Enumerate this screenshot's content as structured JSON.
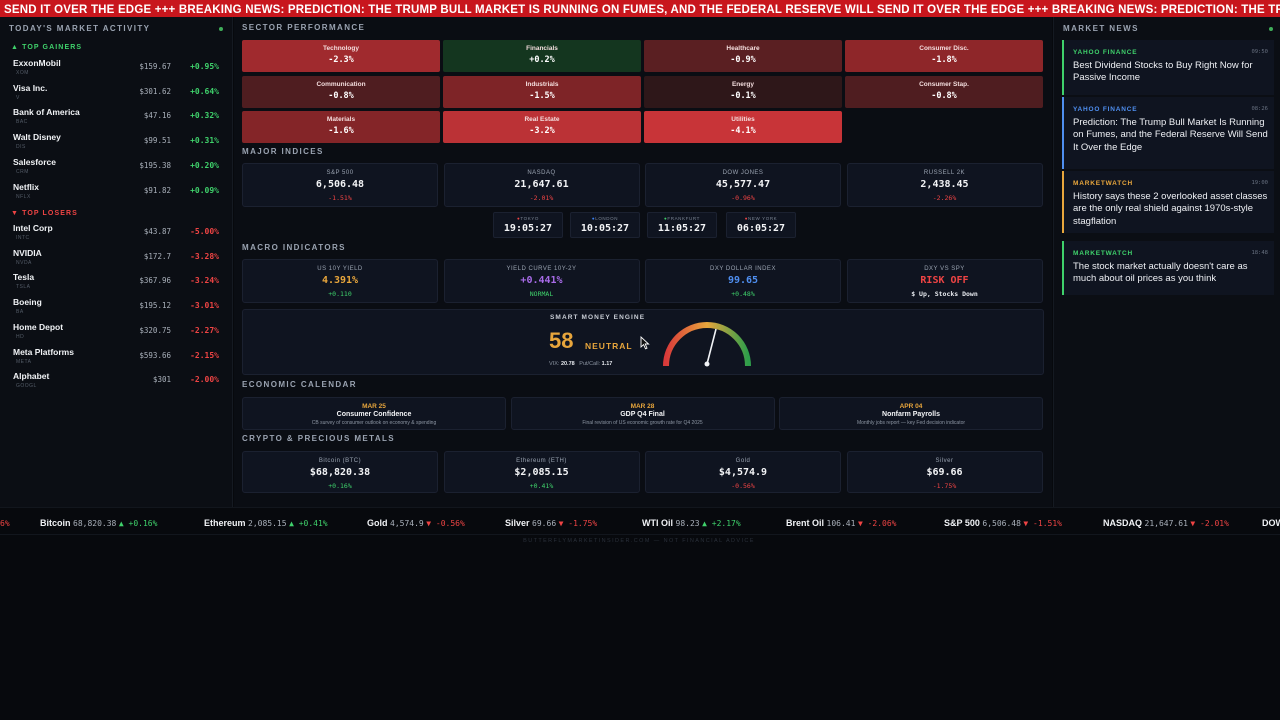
{
  "top_ticker": "SEND IT OVER THE EDGE +++ BREAKING NEWS: PREDICTION: THE TRUMP BULL MARKET IS RUNNING ON FUMES, AND THE FEDERAL RESERVE WILL SEND IT OVER THE EDGE +++ BREAKING NEWS: PREDICTION: THE TRUMP BULL MARKET IS RUNNING",
  "left": {
    "title": "TODAY'S MARKET ACTIVITY",
    "gainers_label": "▲ TOP GAINERS",
    "losers_label": "▼ TOP LOSERS",
    "gainers": [
      {
        "name": "ExxonMobil",
        "ticker": "XOM",
        "price": "$159.67",
        "change": "+0.95%"
      },
      {
        "name": "Visa Inc.",
        "ticker": "V",
        "price": "$301.62",
        "change": "+0.64%"
      },
      {
        "name": "Bank of America",
        "ticker": "BAC",
        "price": "$47.16",
        "change": "+0.32%"
      },
      {
        "name": "Walt Disney",
        "ticker": "DIS",
        "price": "$99.51",
        "change": "+0.31%"
      },
      {
        "name": "Salesforce",
        "ticker": "CRM",
        "price": "$195.38",
        "change": "+0.20%"
      },
      {
        "name": "Netflix",
        "ticker": "NFLX",
        "price": "$91.82",
        "change": "+0.09%"
      }
    ],
    "losers": [
      {
        "name": "Intel Corp",
        "ticker": "INTC",
        "price": "$43.87",
        "change": "-5.00%"
      },
      {
        "name": "NVIDIA",
        "ticker": "NVDA",
        "price": "$172.7",
        "change": "-3.28%"
      },
      {
        "name": "Tesla",
        "ticker": "TSLA",
        "price": "$367.96",
        "change": "-3.24%"
      },
      {
        "name": "Boeing",
        "ticker": "BA",
        "price": "$195.12",
        "change": "-3.01%"
      },
      {
        "name": "Home Depot",
        "ticker": "HD",
        "price": "$320.75",
        "change": "-2.27%"
      },
      {
        "name": "Meta Platforms",
        "ticker": "META",
        "price": "$593.66",
        "change": "-2.15%"
      },
      {
        "name": "Alphabet",
        "ticker": "GOOGL",
        "price": "$301",
        "change": "-2.00%"
      }
    ]
  },
  "sectors": {
    "title": "SECTOR PERFORMANCE",
    "items": [
      {
        "name": "Technology",
        "value": "-2.3%",
        "color": "#a02a2e"
      },
      {
        "name": "Financials",
        "value": "+0.2%",
        "color": "#14361f"
      },
      {
        "name": "Healthcare",
        "value": "-0.9%",
        "color": "#5a1f22"
      },
      {
        "name": "Consumer Disc.",
        "value": "-1.8%",
        "color": "#8e2629"
      },
      {
        "name": "Communication",
        "value": "-0.8%",
        "color": "#4f1d20"
      },
      {
        "name": "Industrials",
        "value": "-1.5%",
        "color": "#7e2427"
      },
      {
        "name": "Energy",
        "value": "-0.1%",
        "color": "#2e1719"
      },
      {
        "name": "Consumer Stap.",
        "value": "-0.8%",
        "color": "#4f1d20"
      },
      {
        "name": "Materials",
        "value": "-1.6%",
        "color": "#842528"
      },
      {
        "name": "Real Estate",
        "value": "-3.2%",
        "color": "#bb3236"
      },
      {
        "name": "Utilities",
        "value": "-4.1%",
        "color": "#c83438"
      }
    ]
  },
  "indices": {
    "title": "MAJOR INDICES",
    "items": [
      {
        "name": "S&P 500",
        "value": "6,506.48",
        "change": "-1.51%"
      },
      {
        "name": "NASDAQ",
        "value": "21,647.61",
        "change": "-2.01%"
      },
      {
        "name": "DOW JONES",
        "value": "45,577.47",
        "change": "-0.96%"
      },
      {
        "name": "RUSSELL 2K",
        "value": "2,438.45",
        "change": "-2.26%"
      }
    ]
  },
  "clocks": [
    {
      "city": "●TOKYO",
      "time": "19:05:27",
      "dot": "#ef4444"
    },
    {
      "city": "●LONDON",
      "time": "10:05:27",
      "dot": "#3b82f6"
    },
    {
      "city": "●FRANKFURT",
      "time": "11:05:27",
      "dot": "#3fd16b"
    },
    {
      "city": "●NEW YORK",
      "time": "06:05:27",
      "dot": "#ef4444"
    }
  ],
  "macro": {
    "title": "MACRO INDICATORS",
    "items": [
      {
        "name": "US 10Y YIELD",
        "value": "4.391%",
        "sub": "+0.110",
        "vcolor": "#e8a63c",
        "scolor": "#3fd16b"
      },
      {
        "name": "YIELD CURVE 10Y-2Y",
        "value": "+0.441%",
        "sub": "NORMAL",
        "vcolor": "#a86be8",
        "scolor": "#3fd16b"
      },
      {
        "name": "DXY DOLLAR INDEX",
        "value": "99.65",
        "sub": "+0.48%",
        "vcolor": "#4f8ff0",
        "scolor": "#3fd16b"
      },
      {
        "name": "DXY VS SPY",
        "value": "RISK OFF",
        "sub": "$ Up, Stocks Down",
        "vcolor": "#ef4444",
        "scolor": "#e6e9ee"
      }
    ]
  },
  "smart_money": {
    "title": "SMART MONEY ENGINE",
    "score": "58",
    "label": "NEUTRAL",
    "vix_label": "VIX:",
    "vix": "20.78",
    "pc_label": "Put/Call:",
    "pc": "1.17",
    "gauge_level": 0.58
  },
  "calendar": {
    "title": "ECONOMIC CALENDAR",
    "items": [
      {
        "date": "MAR 25",
        "title": "Consumer Confidence",
        "sub": "CB survey of consumer outlook on economy & spending"
      },
      {
        "date": "MAR 28",
        "title": "GDP Q4 Final",
        "sub": "Final revision of US economic growth rate for Q4 2025"
      },
      {
        "date": "APR 04",
        "title": "Nonfarm Payrolls",
        "sub": "Monthly jobs report — key Fed decision indicator"
      }
    ]
  },
  "crypto": {
    "title": "CRYPTO & PRECIOUS METALS",
    "items": [
      {
        "name": "Bitcoin (BTC)",
        "value": "$68,820.38",
        "change": "+0.16%",
        "dir": "up"
      },
      {
        "name": "Ethereum (ETH)",
        "value": "$2,085.15",
        "change": "+0.41%",
        "dir": "up"
      },
      {
        "name": "Gold",
        "value": "$4,574.9",
        "change": "-0.56%",
        "dir": "dn"
      },
      {
        "name": "Silver",
        "value": "$69.66",
        "change": "-1.75%",
        "dir": "dn"
      }
    ]
  },
  "news": {
    "title": "MARKET NEWS",
    "items": [
      {
        "source": "YAHOO FINANCE",
        "time": "09:50",
        "title": "Best Dividend Stocks to Buy Right Now for Passive Income",
        "color": "#3fd16b"
      },
      {
        "source": "YAHOO FINANCE",
        "time": "08:26",
        "title": "Prediction: The Trump Bull Market Is Running on Fumes, and the Federal Reserve Will Send It Over the Edge",
        "color": "#4f8ff0"
      },
      {
        "source": "MARKETWATCH",
        "time": "19:00",
        "title": "History says these 2 overlooked asset classes are the only real shield against 1970s-style stagflation",
        "color": "#e8a63c"
      },
      {
        "source": "MARKETWATCH",
        "time": "18:48",
        "title": "The stock market actually doesn't care as much about oil prices as you think",
        "color": "#3fd16b"
      }
    ]
  },
  "bottom_ticker": [
    {
      "name": "",
      "price": "",
      "change": "6%",
      "dir": "dn"
    },
    {
      "name": "Bitcoin",
      "price": "68,820.38",
      "change": "▲ +0.16%",
      "dir": "up"
    },
    {
      "name": "Ethereum",
      "price": "2,085.15",
      "change": "▲ +0.41%",
      "dir": "up"
    },
    {
      "name": "Gold",
      "price": "4,574.9",
      "change": "▼ -0.56%",
      "dir": "dn"
    },
    {
      "name": "Silver",
      "price": "69.66",
      "change": "▼ -1.75%",
      "dir": "dn"
    },
    {
      "name": "WTI Oil",
      "price": "98.23",
      "change": "▲ +2.17%",
      "dir": "up"
    },
    {
      "name": "Brent Oil",
      "price": "106.41",
      "change": "▼ -2.06%",
      "dir": "dn"
    },
    {
      "name": "S&P 500",
      "price": "6,506.48",
      "change": "▼ -1.51%",
      "dir": "dn"
    },
    {
      "name": "NASDAQ",
      "price": "21,647.61",
      "change": "▼ -2.01%",
      "dir": "dn"
    },
    {
      "name": "DOW",
      "price": "",
      "change": "",
      "dir": "dn"
    }
  ],
  "footer": "BUTTERFLYMARKETINSIDER.COM — NOT FINANCIAL ADVICE"
}
